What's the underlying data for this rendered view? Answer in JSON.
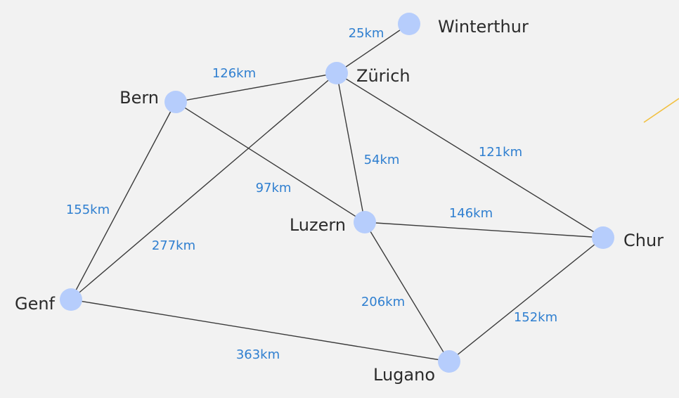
{
  "graph": {
    "nodes": [
      {
        "id": "winterthur",
        "label": "Winterthur"
      },
      {
        "id": "zurich",
        "label": "Zürich"
      },
      {
        "id": "bern",
        "label": "Bern"
      },
      {
        "id": "luzern",
        "label": "Luzern"
      },
      {
        "id": "chur",
        "label": "Chur"
      },
      {
        "id": "genf",
        "label": "Genf"
      },
      {
        "id": "lugano",
        "label": "Lugano"
      }
    ],
    "edges": [
      {
        "from": "zurich",
        "to": "winterthur",
        "label": "25km"
      },
      {
        "from": "bern",
        "to": "zurich",
        "label": "126km"
      },
      {
        "from": "zurich",
        "to": "luzern",
        "label": "54km"
      },
      {
        "from": "zurich",
        "to": "chur",
        "label": "121km"
      },
      {
        "from": "zurich",
        "to": "genf",
        "label": "277km"
      },
      {
        "from": "bern",
        "to": "luzern",
        "label": "97km"
      },
      {
        "from": "bern",
        "to": "genf",
        "label": "155km"
      },
      {
        "from": "luzern",
        "to": "chur",
        "label": "146km"
      },
      {
        "from": "luzern",
        "to": "lugano",
        "label": "206km"
      },
      {
        "from": "chur",
        "to": "lugano",
        "label": "152km"
      },
      {
        "from": "genf",
        "to": "lugano",
        "label": "363km"
      }
    ]
  },
  "colors": {
    "background": "#f2f2f2",
    "node": "#b6cdfc",
    "edge": "#3a3a3a",
    "edge_label": "#2f7fd0",
    "node_label": "#2b2b2b",
    "stray_line": "#f2c040"
  }
}
